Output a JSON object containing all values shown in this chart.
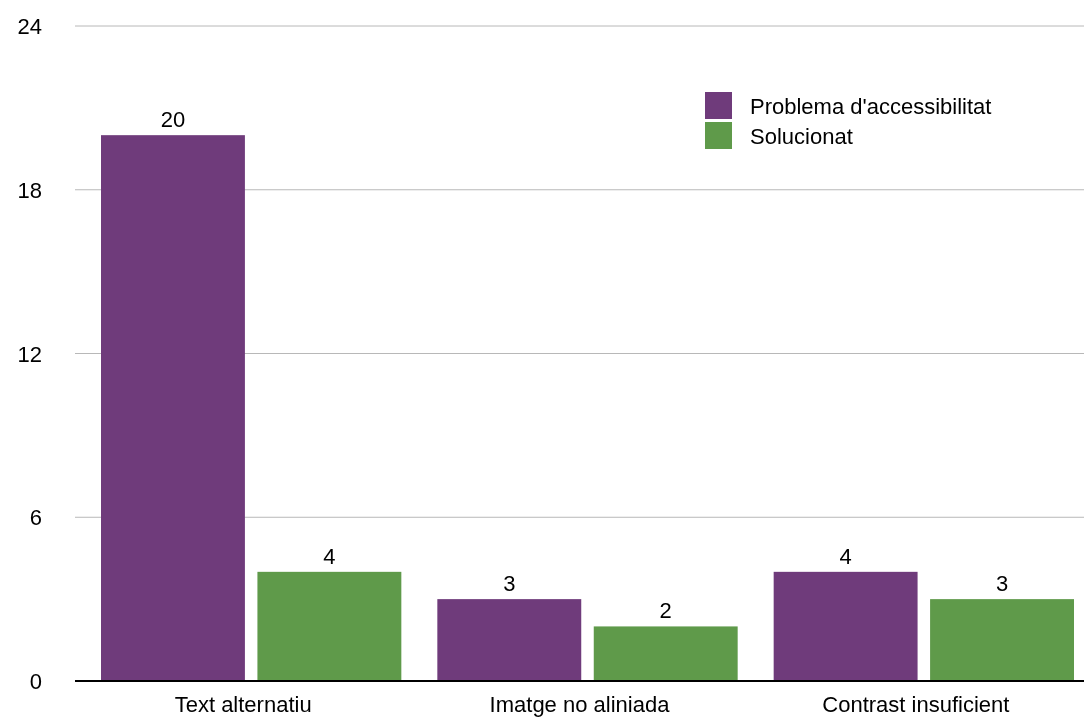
{
  "chart_data": {
    "type": "bar",
    "categories": [
      "Text alternatiu",
      "Imatge no aliniada",
      "Contrast insuficient"
    ],
    "series": [
      {
        "name": "Problema d'accessibilitat",
        "color": "#6f3b7b",
        "values": [
          20,
          3,
          4
        ]
      },
      {
        "name": "Solucionat",
        "color": "#5f9a4a",
        "values": [
          4,
          2,
          3
        ]
      }
    ],
    "ylim": [
      0,
      24
    ],
    "yticks": [
      0,
      6,
      12,
      18,
      24
    ],
    "grid": "y",
    "legend": "top right",
    "data_labels": true
  }
}
